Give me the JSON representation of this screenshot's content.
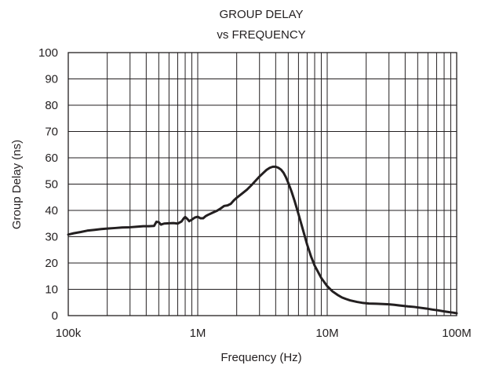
{
  "chart_data": {
    "type": "line",
    "title": [
      "GROUP DELAY",
      "vs FREQUENCY"
    ],
    "xlabel": "Frequency (Hz)",
    "ylabel": "Group Delay (ns)",
    "x_scale": "log",
    "xlim": [
      100000,
      100000000
    ],
    "ylim": [
      0,
      100
    ],
    "x_ticks": [
      {
        "value": 100000,
        "label": "100k"
      },
      {
        "value": 1000000,
        "label": "1M"
      },
      {
        "value": 10000000,
        "label": "10M"
      },
      {
        "value": 100000000,
        "label": "100M"
      }
    ],
    "y_ticks": [
      0,
      10,
      20,
      30,
      40,
      50,
      60,
      70,
      80,
      90,
      100
    ],
    "grid": true,
    "colors": {
      "line": "#231f20",
      "grid": "#231f20",
      "frame": "#231f20"
    },
    "series": [
      {
        "x": [
          100000,
          110000,
          125000,
          140000,
          160000,
          180000,
          200000,
          230000,
          260000,
          300000,
          340000,
          380000,
          420000,
          460000,
          480000,
          500000,
          520000,
          550000,
          600000,
          650000,
          700000,
          750000,
          780000,
          800000,
          830000,
          860000,
          900000,
          950000,
          1000000,
          1050000,
          1100000,
          1150000,
          1200000,
          1300000,
          1400000,
          1500000,
          1600000,
          1700000,
          1800000,
          1900000,
          2000000,
          2200000,
          2400000,
          2600000,
          2800000,
          3000000,
          3200000,
          3400000,
          3600000,
          3800000,
          4000000,
          4200000,
          4400000,
          4600000,
          4800000,
          5000000,
          5300000,
          5600000,
          6000000,
          6500000,
          7000000,
          7500000,
          8000000,
          9000000,
          10000000,
          11000000,
          12000000,
          13000000,
          14000000,
          15000000,
          17000000,
          19000000,
          21000000,
          24000000,
          27000000,
          30000000,
          33000000,
          37000000,
          42000000,
          47000000,
          52000000,
          58000000,
          65000000,
          72000000,
          80000000,
          88000000,
          95000000,
          100000000
        ],
        "y": [
          30.8,
          31.3,
          31.8,
          32.3,
          32.6,
          32.9,
          33.1,
          33.3,
          33.5,
          33.6,
          33.8,
          34.0,
          34.0,
          34.1,
          35.7,
          35.5,
          34.6,
          35.0,
          35.1,
          35.2,
          35.0,
          35.8,
          37.0,
          37.5,
          36.8,
          35.9,
          36.5,
          37.3,
          37.6,
          37.0,
          37.0,
          37.8,
          38.3,
          39.1,
          39.8,
          40.7,
          41.7,
          41.9,
          42.5,
          43.8,
          44.8,
          46.4,
          47.9,
          49.6,
          51.3,
          52.9,
          54.2,
          55.4,
          56.2,
          56.6,
          56.6,
          56.2,
          55.5,
          54.3,
          52.6,
          50.5,
          47.2,
          43.6,
          38.6,
          32.6,
          27.0,
          22.5,
          19.0,
          14.3,
          11.2,
          9.2,
          7.9,
          6.9,
          6.3,
          5.8,
          5.2,
          4.8,
          4.6,
          4.5,
          4.4,
          4.3,
          4.1,
          3.8,
          3.5,
          3.3,
          3.0,
          2.7,
          2.3,
          2.0,
          1.6,
          1.3,
          1.1,
          0.9
        ]
      }
    ]
  }
}
